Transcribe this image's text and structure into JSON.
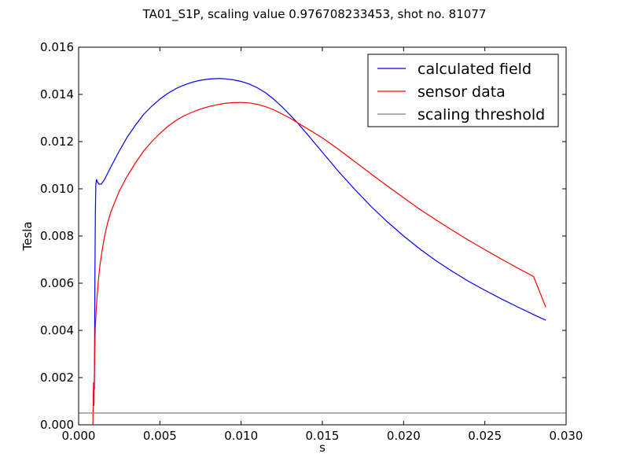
{
  "chart_data": {
    "type": "line",
    "title": "TA01_S1P, scaling value 0.976708233453, shot no. 81077",
    "xlabel": "s",
    "ylabel": "Tesla",
    "xlim": [
      0.0,
      0.03
    ],
    "ylim": [
      0.0,
      0.016
    ],
    "xticks": [
      "0.000",
      "0.005",
      "0.010",
      "0.015",
      "0.020",
      "0.025",
      "0.030"
    ],
    "yticks": [
      "0.000",
      "0.002",
      "0.004",
      "0.006",
      "0.008",
      "0.010",
      "0.012",
      "0.014",
      "0.016"
    ],
    "grid": false,
    "legend_position": "top-right",
    "series": [
      {
        "name": "calculated field",
        "color": "#0000ff",
        "x": [
          0.00097,
          0.001,
          0.00103,
          0.00106,
          0.0011,
          0.00115,
          0.00125,
          0.0014,
          0.0016,
          0.002,
          0.0025,
          0.003,
          0.0035,
          0.004,
          0.0045,
          0.005,
          0.0055,
          0.006,
          0.0065,
          0.007,
          0.0075,
          0.008,
          0.0085,
          0.0088,
          0.009,
          0.0095,
          0.01,
          0.0105,
          0.011,
          0.0115,
          0.012,
          0.0125,
          0.013,
          0.0135,
          0.014,
          0.0145,
          0.015,
          0.0155,
          0.016,
          0.017,
          0.018,
          0.019,
          0.02,
          0.021,
          0.022,
          0.023,
          0.024,
          0.025,
          0.026,
          0.027,
          0.028,
          0.02875
        ],
        "y": [
          0.0015,
          0.006,
          0.009,
          0.0102,
          0.0104,
          0.0103,
          0.0102,
          0.0102,
          0.0104,
          0.01095,
          0.0116,
          0.0122,
          0.0127,
          0.01315,
          0.0135,
          0.0138,
          0.01405,
          0.01425,
          0.0144,
          0.01452,
          0.0146,
          0.01465,
          0.01467,
          0.01467,
          0.01466,
          0.01462,
          0.01455,
          0.01444,
          0.01428,
          0.01407,
          0.0138,
          0.01349,
          0.01314,
          0.01277,
          0.01237,
          0.01196,
          0.01155,
          0.01114,
          0.01073,
          0.00997,
          0.00925,
          0.0086,
          0.008,
          0.00745,
          0.00695,
          0.0065,
          0.00608,
          0.0057,
          0.00534,
          0.005,
          0.00467,
          0.00443
        ]
      },
      {
        "name": "sensor data",
        "color": "#ff0000",
        "x": [
          0.00088,
          0.0009,
          0.00092,
          0.00094,
          0.00096,
          0.00099,
          0.00102,
          0.00106,
          0.00112,
          0.0012,
          0.0013,
          0.00145,
          0.0016,
          0.0018,
          0.002,
          0.0025,
          0.003,
          0.0035,
          0.004,
          0.0045,
          0.005,
          0.0055,
          0.006,
          0.0065,
          0.007,
          0.0075,
          0.008,
          0.0085,
          0.009,
          0.0095,
          0.01,
          0.0105,
          0.011,
          0.0115,
          0.012,
          0.013,
          0.014,
          0.015,
          0.016,
          0.017,
          0.018,
          0.019,
          0.02,
          0.021,
          0.022,
          0.023,
          0.024,
          0.025,
          0.026,
          0.027,
          0.028,
          0.02875
        ],
        "y": [
          0.0,
          0.0013,
          0.0018,
          0.0008,
          0.0018,
          0.003,
          0.004,
          0.0046,
          0.0053,
          0.006,
          0.0067,
          0.0074,
          0.008,
          0.0086,
          0.00905,
          0.0099,
          0.01055,
          0.0111,
          0.0116,
          0.012,
          0.01235,
          0.01265,
          0.0129,
          0.0131,
          0.01325,
          0.01338,
          0.01348,
          0.01356,
          0.01362,
          0.01365,
          0.01366,
          0.01364,
          0.01358,
          0.01348,
          0.01335,
          0.013,
          0.01258,
          0.01216,
          0.01167,
          0.01115,
          0.01063,
          0.01012,
          0.00962,
          0.00913,
          0.00868,
          0.00824,
          0.00782,
          0.00742,
          0.00703,
          0.00665,
          0.00628,
          0.00498
        ]
      },
      {
        "name": "scaling threshold",
        "color": "#808080",
        "x": [
          0.0,
          0.03
        ],
        "y": [
          0.0005,
          0.0005
        ]
      }
    ]
  }
}
